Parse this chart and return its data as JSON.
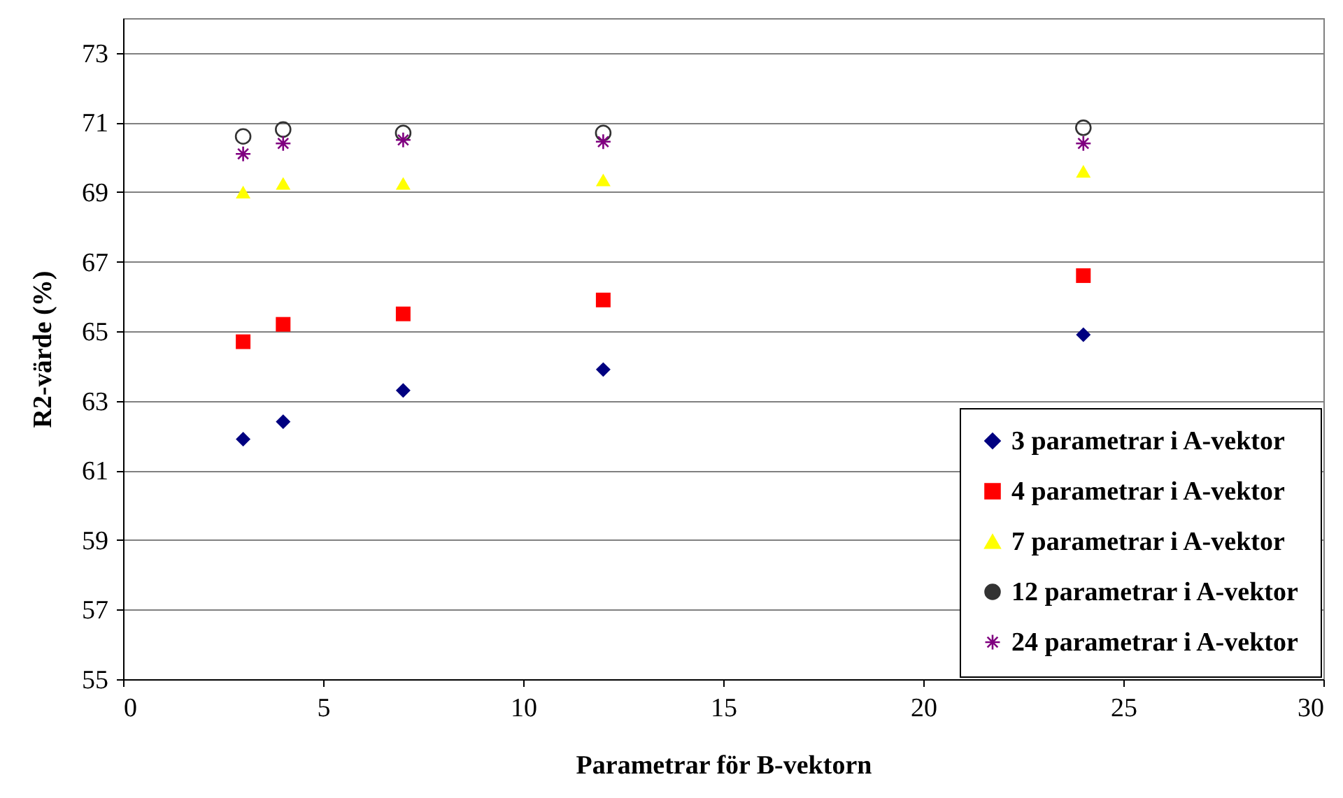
{
  "chart_data": {
    "type": "scatter",
    "xlabel": "Parametrar för B-vektorn",
    "ylabel": "R2-värde (%)",
    "x": [
      3,
      4,
      7,
      12,
      24
    ],
    "series": [
      {
        "name": "3 parametrar i A-vektor",
        "color": "#000080",
        "marker": "diamond",
        "values": [
          61.9,
          62.4,
          63.3,
          63.9,
          64.9
        ]
      },
      {
        "name": "4 parametrar i A-vektor",
        "color": "#ff0000",
        "marker": "square",
        "values": [
          64.7,
          65.2,
          65.5,
          65.9,
          66.6
        ]
      },
      {
        "name": "7 parametrar i A-vektor",
        "color": "#ffff00",
        "marker": "triangle",
        "values": [
          69.0,
          69.25,
          69.25,
          69.35,
          69.6
        ]
      },
      {
        "name": "12 parametrar i A-vektor",
        "color": "#333333",
        "marker": "circle",
        "values": [
          70.6,
          70.8,
          70.7,
          70.7,
          70.85
        ]
      },
      {
        "name": "24 parametrar i A-vektor",
        "color": "#800080",
        "marker": "cross",
        "values": [
          70.1,
          70.4,
          70.5,
          70.45,
          70.4
        ]
      }
    ],
    "xlim": [
      0,
      30
    ],
    "xticks": [
      0,
      5,
      10,
      15,
      20,
      25,
      30
    ],
    "ylim": [
      55,
      74
    ],
    "yticks": [
      55,
      57,
      59,
      61,
      63,
      65,
      67,
      69,
      71,
      73
    ],
    "grid": "y",
    "legend": "bottom right"
  }
}
